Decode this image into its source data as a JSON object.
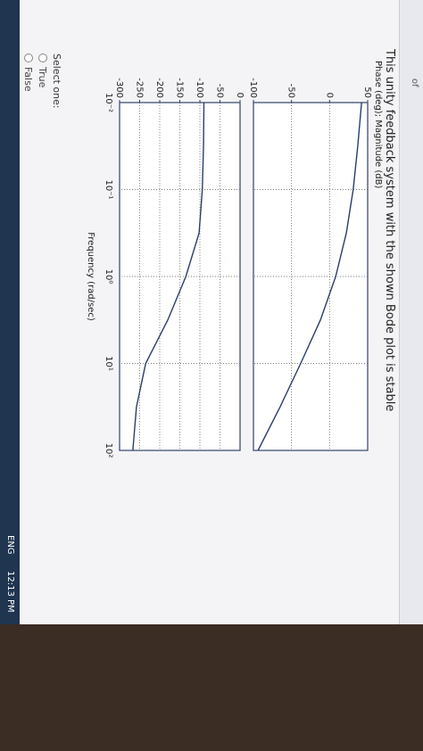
{
  "question": "This unity feedback system with the shown Bode plot is stable",
  "select_label": "Select one:",
  "options": [
    "True",
    "False"
  ],
  "side_label": "of",
  "clock": "12:13 PM",
  "language": "ENG",
  "chart_data": [
    {
      "type": "line",
      "y_label": "Phase (deg); Magnitude (dB)",
      "color": "#2a3d6e",
      "x": [
        0.01,
        0.0316,
        0.1,
        0.316,
        1,
        3.16,
        10,
        31.6,
        100
      ],
      "values": [
        42,
        37,
        31,
        22,
        8,
        -12,
        -38,
        -65,
        -94
      ],
      "xlim": [
        0.01,
        100
      ],
      "ylim": [
        -100,
        50
      ],
      "yticks": [
        -100,
        -50,
        0,
        50
      ],
      "log_x": true,
      "grid": true
    },
    {
      "type": "line",
      "x_label": "Frequency (rad/sec)",
      "color": "#2a3d6e",
      "x": [
        0.01,
        0.0316,
        0.1,
        0.316,
        1,
        3.16,
        10,
        31.6,
        100
      ],
      "values": [
        -90,
        -91,
        -94,
        -102,
        -135,
        -180,
        -235,
        -258,
        -267
      ],
      "xlim": [
        0.01,
        100
      ],
      "ylim": [
        -300,
        0
      ],
      "yticks": [
        -300,
        -250,
        -200,
        -150,
        -100,
        -50,
        0
      ],
      "xticks": [
        {
          "value": 0.01,
          "label": "10⁻²"
        },
        {
          "value": 0.1,
          "label": "10⁻¹"
        },
        {
          "value": 1,
          "label": "10⁰"
        },
        {
          "value": 10,
          "label": "10¹"
        },
        {
          "value": 100,
          "label": "10²"
        }
      ],
      "log_x": true,
      "grid": true
    }
  ]
}
